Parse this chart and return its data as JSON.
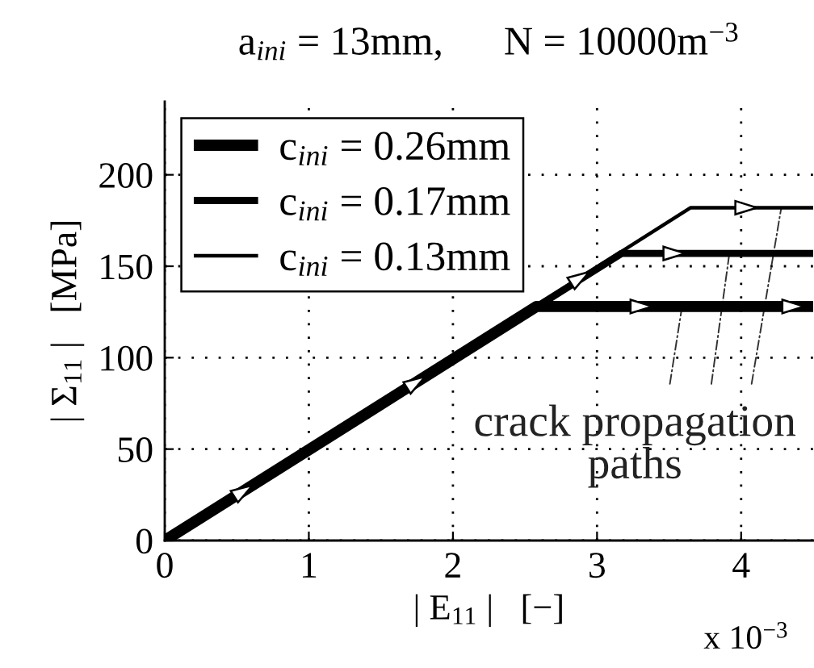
{
  "chart_data": {
    "type": "line",
    "title": "a$_{ini}$ = 13mm,      N = 10000m$^{−3}$",
    "xlabel": "| E$_{11}$ |   [−]",
    "ylabel": "| Σ$_{11}$ |   [MPa]",
    "annotations": [
      {
        "text": "crack propagation\npaths",
        "x": 3.59,
        "y": 128
      },
      "x 10$^{−3}$"
    ],
    "series": [
      {
        "name": "c$_{ini}$ = 0.26mm",
        "color": "#000000",
        "x": [
          0,
          2.58,
          4.5
        ],
        "values": [
          0,
          128,
          128
        ]
      },
      {
        "name": "c$_{ini}$ = 0.17mm",
        "color": "#000000",
        "x": [
          0,
          3.17,
          4.5
        ],
        "values": [
          0,
          157,
          157
        ]
      },
      {
        "name": "c$_{ini}$ = 0.13mm",
        "color": "#000000",
        "x": [
          0,
          3.65,
          4.5
        ],
        "values": [
          0,
          182,
          182
        ]
      }
    ],
    "xlim": [
      0,
      4.5
    ],
    "ylim": [
      0,
      240
    ],
    "xticks": [
      0,
      1,
      2,
      3,
      4
    ],
    "yticks": [
      0,
      50,
      100,
      150,
      200
    ],
    "grid": true,
    "legend": "top left",
    "line_style": "solid"
  }
}
